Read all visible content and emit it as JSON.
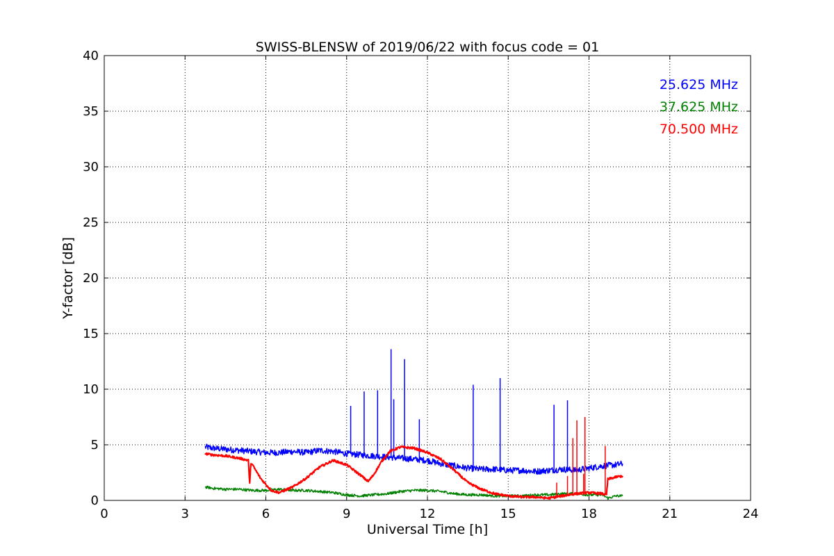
{
  "chart_data": {
    "type": "line",
    "title": "SWISS-BLENSW of 2019/06/22 with focus code = 01",
    "xlabel": "Universal Time [h]",
    "ylabel": "Y-factor [dB]",
    "xlim": [
      0,
      24
    ],
    "ylim": [
      0,
      40
    ],
    "xticks": [
      0,
      3,
      6,
      9,
      12,
      15,
      18,
      21,
      24
    ],
    "yticks": [
      0,
      5,
      10,
      15,
      20,
      25,
      30,
      35,
      40
    ],
    "grid": true,
    "legend_position": "top-right",
    "series": [
      {
        "name": "25.625 MHz",
        "color": "#0000ff",
        "x": [
          3.75,
          4.0,
          4.5,
          5.0,
          5.5,
          6.0,
          6.5,
          7.0,
          7.5,
          8.0,
          8.5,
          9.0,
          9.5,
          10.0,
          10.5,
          11.0,
          11.5,
          12.0,
          12.5,
          13.0,
          13.5,
          14.0,
          14.5,
          15.0,
          15.5,
          16.0,
          16.5,
          17.0,
          17.5,
          18.0,
          18.5,
          19.0,
          19.25
        ],
        "y": [
          4.8,
          4.7,
          4.6,
          4.5,
          4.4,
          4.3,
          4.3,
          4.4,
          4.3,
          4.5,
          4.4,
          4.2,
          4.1,
          4.0,
          3.9,
          3.8,
          3.7,
          3.6,
          3.3,
          3.1,
          2.9,
          2.8,
          2.8,
          2.7,
          2.7,
          2.6,
          2.7,
          2.8,
          2.7,
          2.9,
          3.1,
          3.2,
          3.3
        ],
        "spikes": [
          {
            "x": 9.15,
            "y": 8.5
          },
          {
            "x": 9.65,
            "y": 9.8
          },
          {
            "x": 10.15,
            "y": 9.9
          },
          {
            "x": 10.65,
            "y": 13.6
          },
          {
            "x": 10.75,
            "y": 9.1
          },
          {
            "x": 11.15,
            "y": 12.7
          },
          {
            "x": 11.7,
            "y": 7.3
          },
          {
            "x": 13.7,
            "y": 10.4
          },
          {
            "x": 14.7,
            "y": 11.0
          },
          {
            "x": 16.7,
            "y": 8.6
          },
          {
            "x": 17.2,
            "y": 9.0
          }
        ]
      },
      {
        "name": "37.625 MHz",
        "color": "#008000",
        "x": [
          3.75,
          4.0,
          4.5,
          5.0,
          5.5,
          6.0,
          6.5,
          7.0,
          7.5,
          8.0,
          8.5,
          9.0,
          9.5,
          10.0,
          10.5,
          11.0,
          11.5,
          12.0,
          12.5,
          13.0,
          13.5,
          14.0,
          14.5,
          15.0,
          15.5,
          16.0,
          16.5,
          17.0,
          17.5,
          18.0,
          18.5,
          18.7,
          19.0,
          19.25
        ],
        "y": [
          1.2,
          1.1,
          1.0,
          1.0,
          0.9,
          0.9,
          1.0,
          0.9,
          0.9,
          0.8,
          0.7,
          0.5,
          0.4,
          0.5,
          0.6,
          0.8,
          0.9,
          0.9,
          0.8,
          0.6,
          0.5,
          0.5,
          0.4,
          0.4,
          0.4,
          0.5,
          0.5,
          0.6,
          0.6,
          0.5,
          0.5,
          0.2,
          0.4,
          0.4
        ]
      },
      {
        "name": "70.500 MHz",
        "color": "#ff0000",
        "x": [
          3.75,
          4.0,
          4.5,
          5.0,
          5.35,
          5.4,
          5.45,
          5.8,
          6.2,
          6.5,
          7.0,
          7.5,
          8.0,
          8.5,
          9.0,
          9.5,
          9.8,
          10.0,
          10.3,
          10.6,
          11.0,
          11.5,
          12.0,
          12.5,
          13.0,
          13.5,
          14.0,
          14.5,
          15.0,
          15.5,
          16.0,
          16.5,
          17.0,
          17.5,
          18.0,
          18.5,
          18.65,
          18.7,
          19.0,
          19.25
        ],
        "y": [
          4.2,
          4.1,
          4.0,
          3.8,
          3.6,
          1.5,
          3.4,
          2.0,
          0.9,
          0.7,
          1.2,
          2.0,
          3.0,
          3.6,
          3.2,
          2.3,
          1.7,
          2.3,
          3.5,
          4.4,
          4.8,
          4.7,
          4.3,
          3.7,
          2.7,
          1.6,
          1.0,
          0.6,
          0.4,
          0.3,
          0.3,
          0.2,
          0.4,
          0.6,
          0.7,
          0.6,
          0.5,
          1.9,
          2.1,
          2.2
        ],
        "spikes": [
          {
            "x": 16.8,
            "y": 1.6
          },
          {
            "x": 17.2,
            "y": 2.2
          },
          {
            "x": 17.4,
            "y": 5.6
          },
          {
            "x": 17.55,
            "y": 7.2
          },
          {
            "x": 17.8,
            "y": 2.4
          },
          {
            "x": 17.85,
            "y": 7.5
          },
          {
            "x": 18.6,
            "y": 4.9
          }
        ]
      }
    ]
  }
}
